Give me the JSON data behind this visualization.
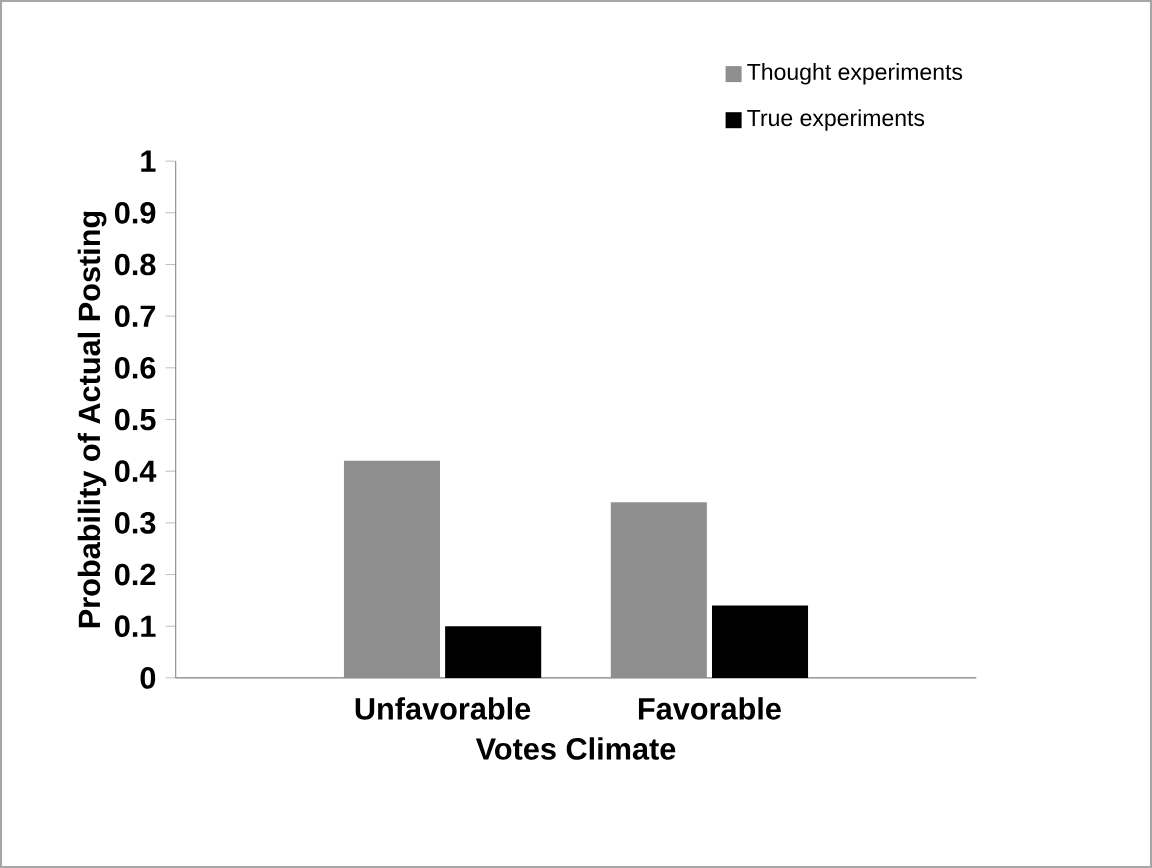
{
  "chart_data": {
    "type": "bar",
    "xlabel": "Votes Climate",
    "ylabel": "Probability of Actual Posting",
    "categories": [
      "Unfavorable",
      "Favorable"
    ],
    "series": [
      {
        "name": "Thought experiments",
        "color": "#8f8f8f",
        "values": [
          0.42,
          0.34
        ]
      },
      {
        "name": "True experiments",
        "color": "#000000",
        "values": [
          0.1,
          0.14
        ]
      }
    ],
    "ylim": [
      0,
      1
    ],
    "yticks": [
      0,
      0.1,
      0.2,
      0.3,
      0.4,
      0.5,
      0.6,
      0.7,
      0.8,
      0.9,
      1
    ],
    "grid": false,
    "legend": "top right"
  }
}
